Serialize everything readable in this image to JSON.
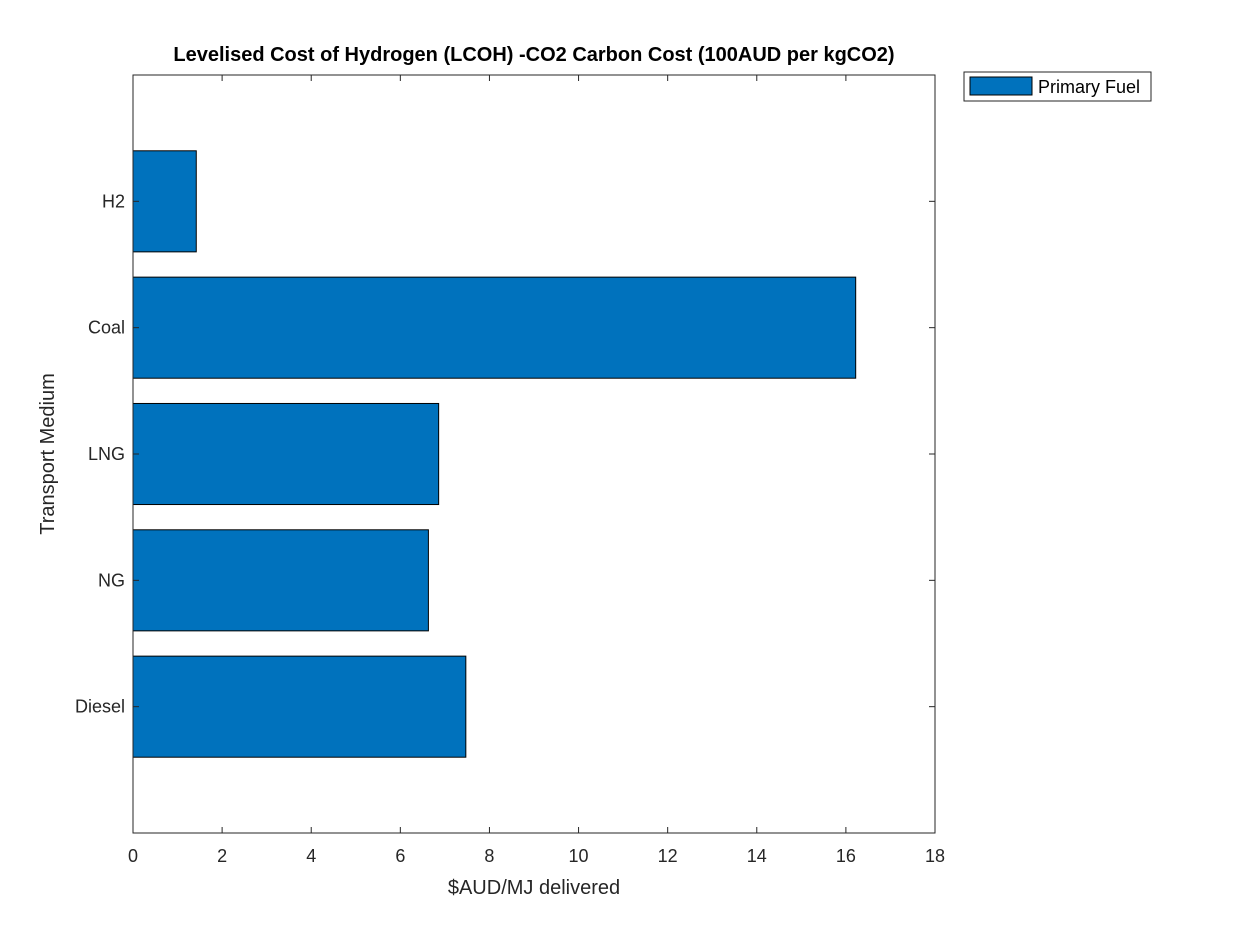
{
  "chart_data": {
    "type": "bar",
    "orientation": "horizontal",
    "title": "Levelised Cost of Hydrogen (LCOH) -CO2 Carbon Cost (100AUD per kgCO2)",
    "xlabel": "$AUD/MJ delivered",
    "ylabel": "Transport Medium",
    "categories": [
      "Diesel",
      "NG",
      "LNG",
      "Coal",
      "H2"
    ],
    "series": [
      {
        "name": "Primary Fuel",
        "values": [
          7.47,
          6.63,
          6.86,
          16.22,
          1.42
        ],
        "color": "#0072BD"
      }
    ],
    "xlim": [
      0,
      18
    ],
    "xticks": [
      0,
      2,
      4,
      6,
      8,
      10,
      12,
      14,
      16,
      18
    ],
    "ylim": [
      0,
      6
    ],
    "grid": false,
    "legend_location": "outside-top-right"
  }
}
